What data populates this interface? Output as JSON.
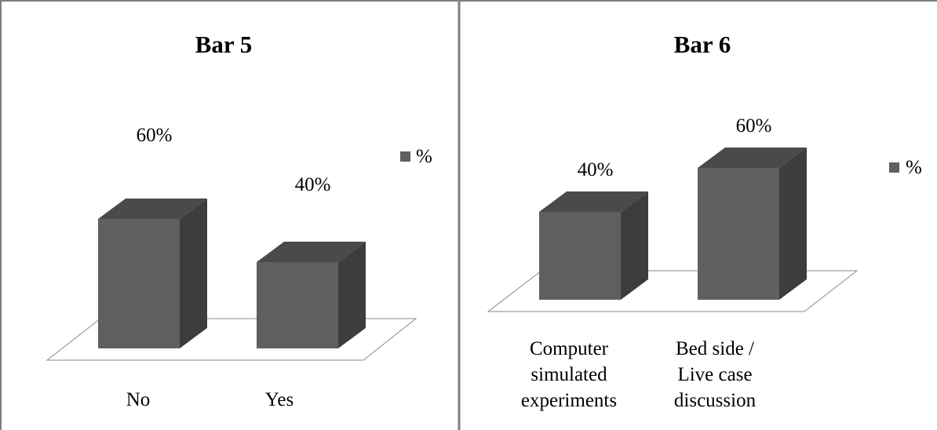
{
  "colors": {
    "bar_front": "#5f5f5f",
    "bar_top": "#4a4a4a",
    "bar_side": "#3d3d3d",
    "panel_border": "#7f7f7f",
    "floor_stroke": "#8a8a8a"
  },
  "chart_data": [
    {
      "type": "bar",
      "title": "Bar 5",
      "categories": [
        "No",
        "Yes"
      ],
      "series": [
        {
          "name": "%",
          "values": [
            60,
            40
          ]
        }
      ],
      "data_labels": [
        "60%",
        "40%"
      ],
      "legend": {
        "position": "right",
        "label": "%"
      },
      "style": "3d",
      "ylim": [
        0,
        100
      ]
    },
    {
      "type": "bar",
      "title": "Bar 6",
      "categories": [
        [
          "Computer",
          "simulated",
          "experiments"
        ],
        [
          "Bed side /",
          "Live case",
          "discussion"
        ]
      ],
      "series": [
        {
          "name": "%",
          "values": [
            40,
            60
          ]
        }
      ],
      "data_labels": [
        "40%",
        "60%"
      ],
      "legend": {
        "position": "right",
        "label": "%"
      },
      "style": "3d",
      "ylim": [
        0,
        100
      ]
    }
  ]
}
